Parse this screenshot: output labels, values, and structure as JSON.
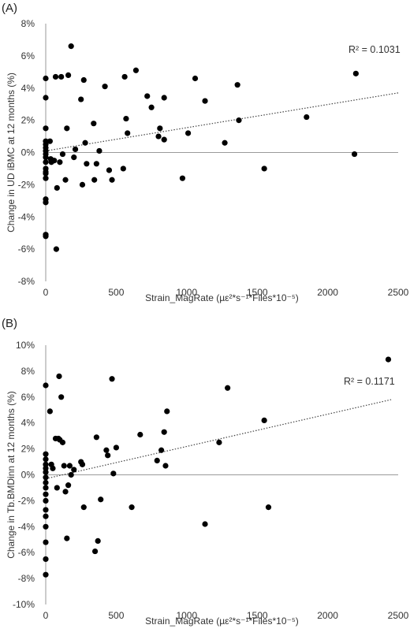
{
  "chart_data": [
    {
      "panel_label": "(A)",
      "type": "scatter",
      "title": "",
      "xlabel": "Strain_MagRate",
      "xlabel_units": "(µε²*s⁻¹*Files*10⁻⁵)",
      "ylabel": "Change in UD iBMC at 12 months (%)",
      "xlim": [
        0,
        2500
      ],
      "ylim": [
        -8,
        8
      ],
      "xticks": [
        "0",
        "500",
        "1000",
        "1500",
        "2000",
        "2500"
      ],
      "yticks": [
        "-8%",
        "-6%",
        "-4%",
        "-2%",
        "0%",
        "2%",
        "4%",
        "6%",
        "8%"
      ],
      "trendline": {
        "style": "dotted",
        "x": [
          0,
          2500
        ],
        "y": [
          0.1,
          3.7
        ]
      },
      "annotation": "R² = 0.1031",
      "grid": false,
      "points": [
        [
          0,
          4.6
        ],
        [
          0,
          3.4
        ],
        [
          0,
          1.5
        ],
        [
          0,
          0.7
        ],
        [
          0,
          0.5
        ],
        [
          0,
          0.3
        ],
        [
          0,
          0.1
        ],
        [
          0,
          -0.1
        ],
        [
          0,
          -0.3
        ],
        [
          0,
          -0.6
        ],
        [
          0,
          -1.0
        ],
        [
          0,
          -1.2
        ],
        [
          0,
          -1.3
        ],
        [
          0,
          -1.6
        ],
        [
          0,
          -2.9
        ],
        [
          0,
          -3.1
        ],
        [
          0,
          -5.1
        ],
        [
          0,
          -5.2
        ],
        [
          30,
          0.7
        ],
        [
          35,
          -0.4
        ],
        [
          40,
          -0.6
        ],
        [
          60,
          -0.5
        ],
        [
          70,
          4.7
        ],
        [
          75,
          -6.0
        ],
        [
          80,
          -2.2
        ],
        [
          100,
          -0.6
        ],
        [
          110,
          4.7
        ],
        [
          120,
          -0.1
        ],
        [
          140,
          -1.7
        ],
        [
          150,
          1.5
        ],
        [
          160,
          4.8
        ],
        [
          180,
          6.6
        ],
        [
          200,
          -0.3
        ],
        [
          210,
          0.2
        ],
        [
          250,
          3.3
        ],
        [
          260,
          -2.0
        ],
        [
          270,
          4.5
        ],
        [
          280,
          0.6
        ],
        [
          290,
          -0.7
        ],
        [
          340,
          1.8
        ],
        [
          345,
          -1.7
        ],
        [
          360,
          -0.7
        ],
        [
          380,
          0.1
        ],
        [
          420,
          4.1
        ],
        [
          450,
          -1.1
        ],
        [
          470,
          -1.7
        ],
        [
          550,
          -1.0
        ],
        [
          560,
          4.7
        ],
        [
          570,
          2.1
        ],
        [
          580,
          1.2
        ],
        [
          640,
          5.1
        ],
        [
          720,
          3.5
        ],
        [
          750,
          2.8
        ],
        [
          800,
          1.0
        ],
        [
          810,
          1.5
        ],
        [
          840,
          3.4
        ],
        [
          840,
          0.8
        ],
        [
          970,
          -1.6
        ],
        [
          1010,
          1.2
        ],
        [
          1060,
          4.6
        ],
        [
          1130,
          3.2
        ],
        [
          1270,
          0.6
        ],
        [
          1360,
          4.2
        ],
        [
          1370,
          2.0
        ],
        [
          1550,
          -1.0
        ],
        [
          1850,
          2.2
        ],
        [
          2190,
          -0.1
        ],
        [
          2200,
          4.9
        ]
      ]
    },
    {
      "panel_label": "(B)",
      "type": "scatter",
      "title": "",
      "xlabel": "Strain_MagRate",
      "xlabel_units": "(µε²*s⁻¹*Files*10⁻⁵)",
      "ylabel": "Change in Tb.BMDinn at 12 months (%)",
      "xlim": [
        0,
        2500
      ],
      "ylim": [
        -10,
        10
      ],
      "xticks": [
        "0",
        "500",
        "1000",
        "1500",
        "2000",
        "2500"
      ],
      "yticks": [
        "-10%",
        "-8%",
        "-6%",
        "-4%",
        "-2%",
        "0%",
        "2%",
        "4%",
        "6%",
        "8%",
        "10%"
      ],
      "trendline": {
        "style": "dotted",
        "x": [
          0,
          2450
        ],
        "y": [
          -0.3,
          5.8
        ]
      },
      "annotation": "R² = 0.1171",
      "grid": false,
      "points": [
        [
          0,
          6.9
        ],
        [
          0,
          1.6
        ],
        [
          0,
          1.2
        ],
        [
          0,
          0.8
        ],
        [
          0,
          0.5
        ],
        [
          0,
          0.2
        ],
        [
          0,
          -0.2
        ],
        [
          0,
          -0.6
        ],
        [
          0,
          -1.0
        ],
        [
          0,
          -1.5
        ],
        [
          0,
          -2.0
        ],
        [
          0,
          -2.7
        ],
        [
          0,
          -3.2
        ],
        [
          0,
          -4.0
        ],
        [
          0,
          -5.2
        ],
        [
          0,
          -6.5
        ],
        [
          0,
          -7.7
        ],
        [
          30,
          4.9
        ],
        [
          40,
          0.8
        ],
        [
          50,
          0.5
        ],
        [
          70,
          2.8
        ],
        [
          80,
          -1.0
        ],
        [
          90,
          2.8
        ],
        [
          95,
          7.6
        ],
        [
          100,
          2.7
        ],
        [
          110,
          6.0
        ],
        [
          120,
          2.5
        ],
        [
          130,
          0.7
        ],
        [
          140,
          -1.3
        ],
        [
          150,
          -4.9
        ],
        [
          160,
          -0.8
        ],
        [
          170,
          0.7
        ],
        [
          180,
          0.0
        ],
        [
          200,
          0.4
        ],
        [
          250,
          1.0
        ],
        [
          260,
          0.8
        ],
        [
          270,
          -2.5
        ],
        [
          350,
          -5.9
        ],
        [
          360,
          2.9
        ],
        [
          370,
          -5.1
        ],
        [
          390,
          -1.9
        ],
        [
          430,
          1.9
        ],
        [
          440,
          1.5
        ],
        [
          470,
          7.4
        ],
        [
          480,
          0.1
        ],
        [
          500,
          2.1
        ],
        [
          610,
          -2.5
        ],
        [
          670,
          3.1
        ],
        [
          790,
          1.1
        ],
        [
          820,
          1.9
        ],
        [
          840,
          3.3
        ],
        [
          850,
          0.7
        ],
        [
          860,
          4.9
        ],
        [
          1130,
          -3.8
        ],
        [
          1230,
          2.5
        ],
        [
          1290,
          6.7
        ],
        [
          1550,
          4.2
        ],
        [
          1580,
          -2.5
        ],
        [
          2430,
          8.9
        ]
      ]
    }
  ]
}
